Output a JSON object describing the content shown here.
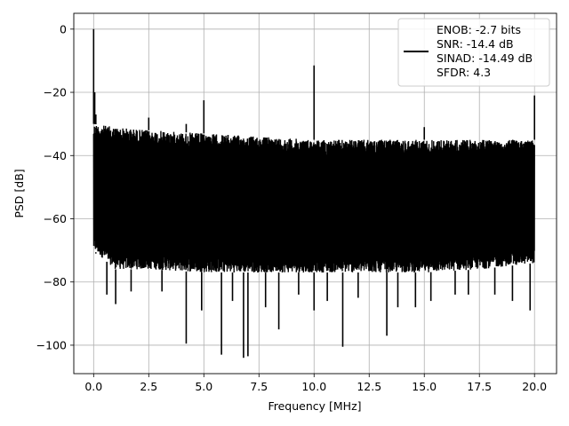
{
  "chart_data": {
    "type": "line",
    "title": "",
    "xlabel": "Frequency [MHz]",
    "ylabel": "PSD [dB]",
    "xlim": [
      -0.9,
      21.0
    ],
    "ylim": [
      -109,
      5
    ],
    "x_ticks": [
      0.0,
      2.5,
      5.0,
      7.5,
      10.0,
      12.5,
      15.0,
      17.5,
      20.0
    ],
    "x_tick_labels": [
      "0.0",
      "2.5",
      "5.0",
      "7.5",
      "10.0",
      "12.5",
      "15.0",
      "17.5",
      "20.0"
    ],
    "y_ticks": [
      0,
      -20,
      -40,
      -60,
      -80,
      -100
    ],
    "y_tick_labels": [
      "0",
      "−20",
      "−40",
      "−60",
      "−80",
      "−100"
    ],
    "grid": true,
    "legend_position": "upper-right",
    "legend_lines": [
      "ENOB: -2.7 bits",
      "SNR: -14.4 dB",
      "SINAD: -14.49 dB",
      "SFDR: 4.3"
    ],
    "series": [
      {
        "color": "#000000",
        "x_range": [
          0.0,
          20.0
        ],
        "noise_band": [
          {
            "x": 0.0,
            "upper": -30,
            "lower": -70
          },
          {
            "x": 1.0,
            "upper": -31,
            "lower": -76
          },
          {
            "x": 2.5,
            "upper": -32,
            "lower": -76
          },
          {
            "x": 5.0,
            "upper": -33,
            "lower": -77
          },
          {
            "x": 7.5,
            "upper": -34,
            "lower": -77
          },
          {
            "x": 10.0,
            "upper": -35,
            "lower": -77
          },
          {
            "x": 12.5,
            "upper": -35,
            "lower": -77
          },
          {
            "x": 15.0,
            "upper": -35,
            "lower": -77
          },
          {
            "x": 17.5,
            "upper": -35,
            "lower": -76
          },
          {
            "x": 20.0,
            "upper": -35,
            "lower": -74
          }
        ],
        "peaks": [
          {
            "x": 0.0,
            "y": 0.0
          },
          {
            "x": 0.05,
            "y": -20.0
          },
          {
            "x": 0.1,
            "y": -27.0
          },
          {
            "x": 2.5,
            "y": -28.0
          },
          {
            "x": 4.2,
            "y": -30.0
          },
          {
            "x": 5.0,
            "y": -22.5
          },
          {
            "x": 10.0,
            "y": -11.5
          },
          {
            "x": 15.0,
            "y": -31.0
          },
          {
            "x": 20.0,
            "y": -21.0
          }
        ],
        "dips": [
          {
            "x": 0.1,
            "y": -71.0
          },
          {
            "x": 0.6,
            "y": -84.0
          },
          {
            "x": 1.0,
            "y": -87.0
          },
          {
            "x": 1.7,
            "y": -83.0
          },
          {
            "x": 3.1,
            "y": -83.0
          },
          {
            "x": 4.2,
            "y": -99.5
          },
          {
            "x": 4.9,
            "y": -89.0
          },
          {
            "x": 5.8,
            "y": -103.0
          },
          {
            "x": 6.3,
            "y": -86.0
          },
          {
            "x": 6.8,
            "y": -104.0
          },
          {
            "x": 7.0,
            "y": -103.5
          },
          {
            "x": 7.8,
            "y": -88.0
          },
          {
            "x": 8.4,
            "y": -95.0
          },
          {
            "x": 9.3,
            "y": -84.0
          },
          {
            "x": 10.0,
            "y": -89.0
          },
          {
            "x": 10.6,
            "y": -86.0
          },
          {
            "x": 11.3,
            "y": -100.5
          },
          {
            "x": 12.0,
            "y": -85.0
          },
          {
            "x": 13.3,
            "y": -97.0
          },
          {
            "x": 13.8,
            "y": -88.0
          },
          {
            "x": 14.6,
            "y": -88.0
          },
          {
            "x": 15.3,
            "y": -86.0
          },
          {
            "x": 16.4,
            "y": -84.0
          },
          {
            "x": 17.0,
            "y": -84.0
          },
          {
            "x": 18.2,
            "y": -84.0
          },
          {
            "x": 19.0,
            "y": -86.0
          },
          {
            "x": 19.8,
            "y": -89.0
          },
          {
            "x": 20.0,
            "y": -74.0
          }
        ]
      }
    ]
  }
}
